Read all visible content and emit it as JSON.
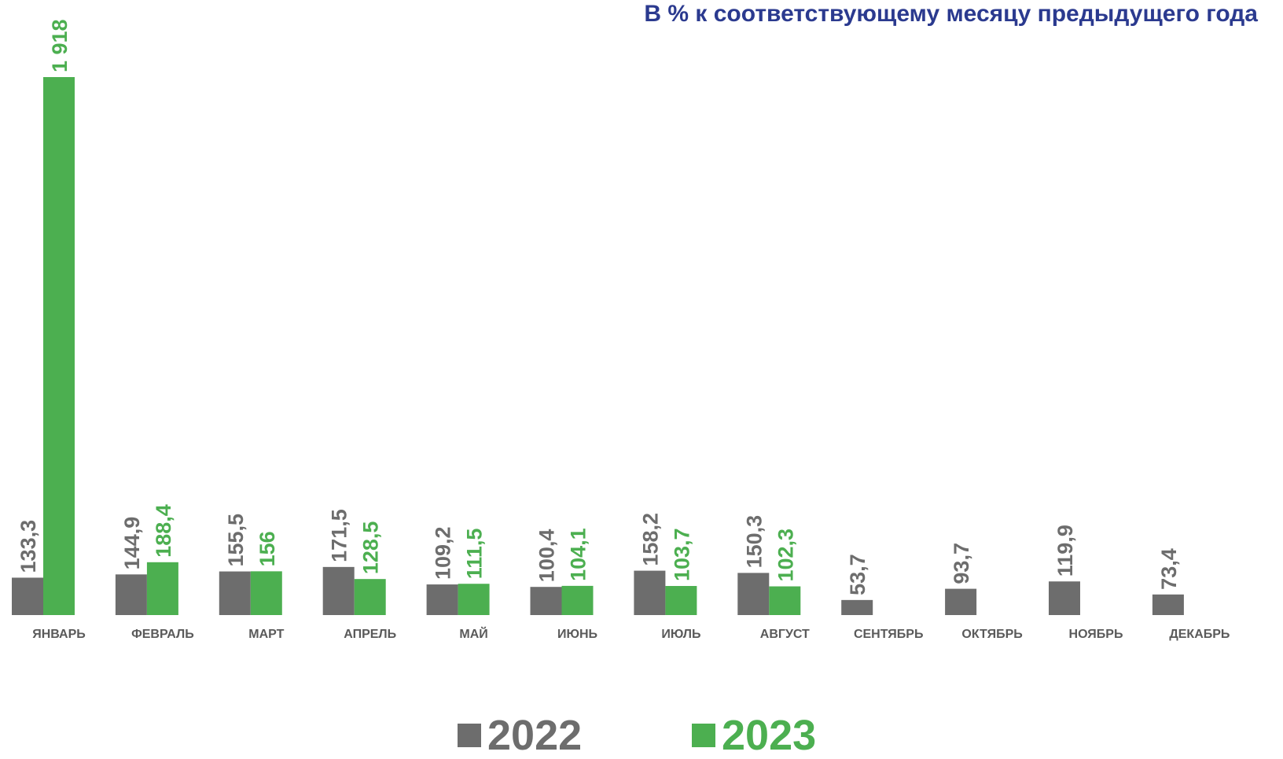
{
  "chart_data": {
    "type": "bar",
    "title": "В % к соответствующему месяцу предыдущего года",
    "categories": [
      "ЯНВАРЬ",
      "ФЕВРАЛЬ",
      "МАРТ",
      "АПРЕЛЬ",
      "МАЙ",
      "ИЮНЬ",
      "ИЮЛЬ",
      "АВГУСТ",
      "СЕНТЯБРЬ",
      "ОКТЯБРЬ",
      "НОЯБРЬ",
      "ДЕКАБРЬ"
    ],
    "series": [
      {
        "name": "2022",
        "color": "#6d6d6d",
        "values": [
          133.3,
          144.9,
          155.5,
          171.5,
          109.2,
          100.4,
          158.2,
          150.3,
          53.7,
          93.7,
          119.9,
          73.4
        ],
        "labels": [
          "133,3",
          "144,9",
          "155,5",
          "171,5",
          "109,2",
          "100,4",
          "158,2",
          "150,3",
          "53,7",
          "93,7",
          "119,9",
          "73,4"
        ]
      },
      {
        "name": "2023",
        "color": "#4caf50",
        "values": [
          1918,
          188.4,
          156,
          128.5,
          111.5,
          104.1,
          103.7,
          102.3,
          null,
          null,
          null,
          null
        ],
        "labels": [
          "1 918",
          "188,4",
          "156",
          "128,5",
          "111,5",
          "104,1",
          "103,7",
          "102,3",
          "",
          "",
          "",
          ""
        ]
      }
    ],
    "ylim": [
      0,
      1918
    ],
    "grid": false,
    "legend_position": "bottom"
  }
}
